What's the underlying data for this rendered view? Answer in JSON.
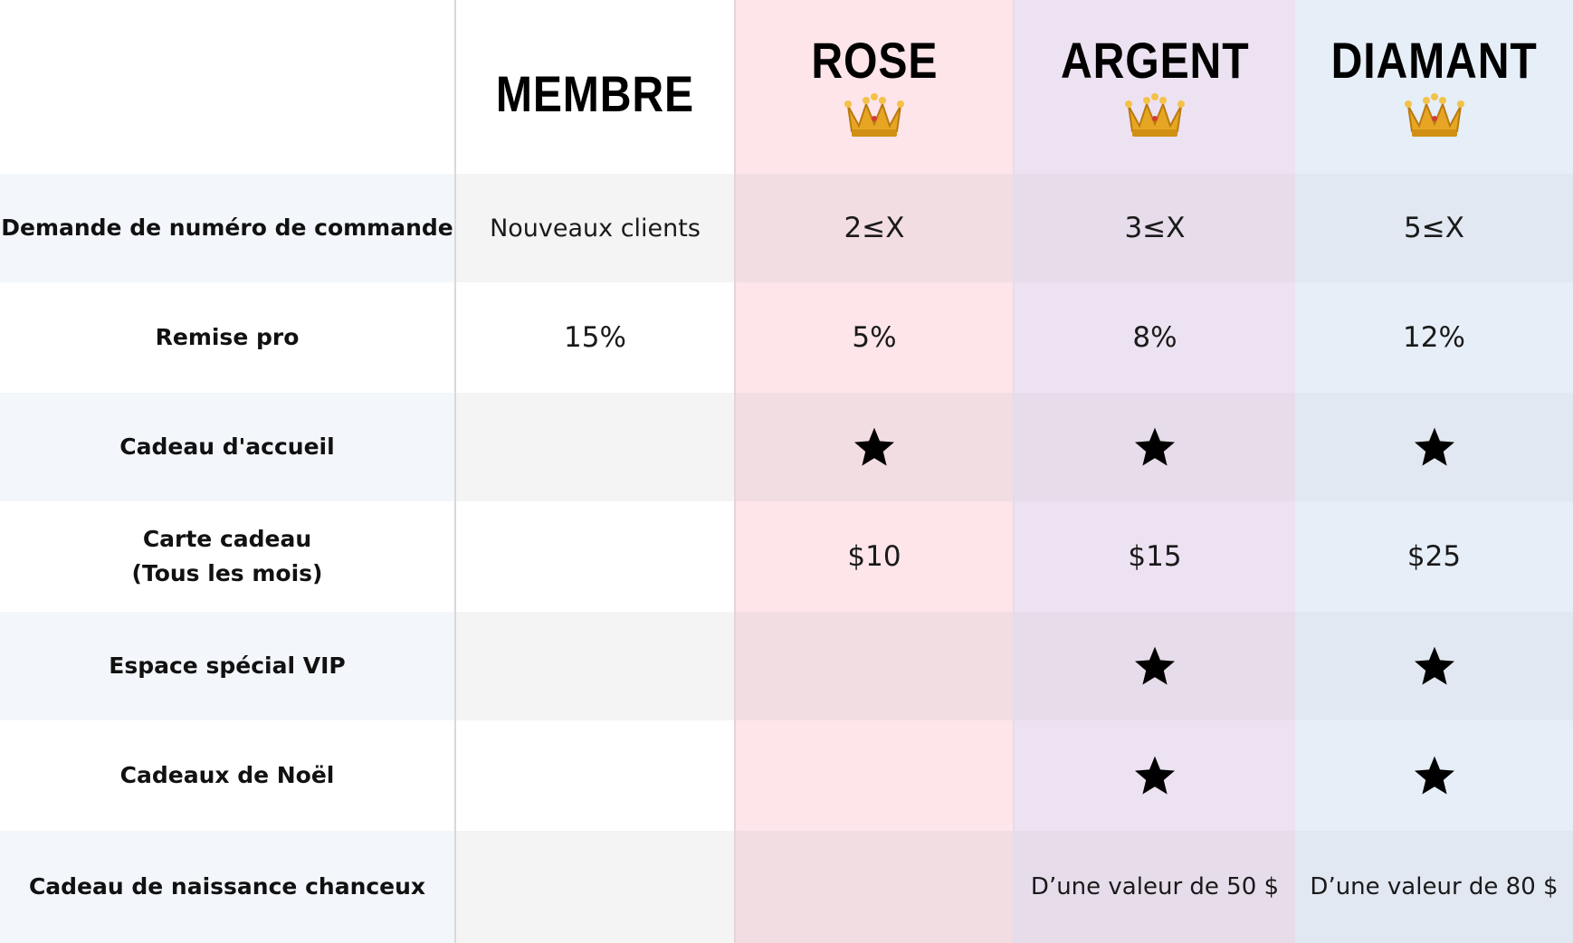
{
  "header": {
    "tiers": [
      "MEMBRE",
      "ROSE",
      "ARGENT",
      "DIAMANT"
    ],
    "crown_icon": "crown-icon"
  },
  "rows": [
    {
      "label": "Demande de numéro de commande",
      "values": [
        "Nouveaux clients",
        "2≤X",
        "3≤X",
        "5≤X"
      ]
    },
    {
      "label": "Remise pro",
      "values": [
        "15%",
        "5%",
        "8%",
        "12%"
      ]
    },
    {
      "label": "Cadeau d'accueil",
      "values": [
        "",
        "star",
        "star",
        "star"
      ]
    },
    {
      "label": "Carte cadeau\n(Tous les mois)",
      "values": [
        "",
        "$10",
        "$15",
        "$25"
      ]
    },
    {
      "label": "Espace spécial VIP",
      "values": [
        "",
        "",
        "star",
        "star"
      ]
    },
    {
      "label": "Cadeaux de Noël",
      "values": [
        "",
        "",
        "star",
        "star"
      ]
    },
    {
      "label": "Cadeau de naissance chanceux",
      "values": [
        "",
        "",
        "D’une valeur de 50 $",
        "D’une valeur de 80 $"
      ]
    }
  ],
  "colors": {
    "rose": "#fde5ea",
    "argent": "#ede2f1",
    "diamant": "#e6eef8"
  }
}
